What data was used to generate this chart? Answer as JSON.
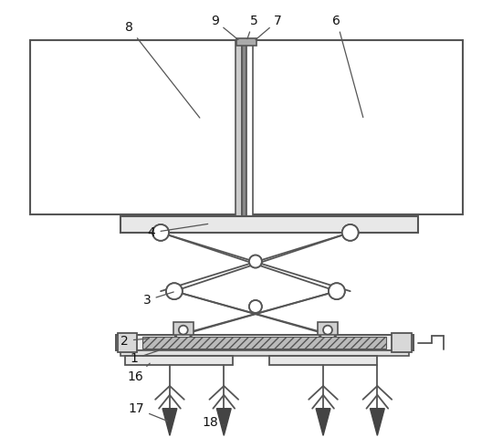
{
  "bg_color": "#ffffff",
  "line_color": "#555555",
  "figsize": [
    5.39,
    4.91
  ],
  "dpi": 100,
  "label_fontsize": 10,
  "label_color": "#111111"
}
